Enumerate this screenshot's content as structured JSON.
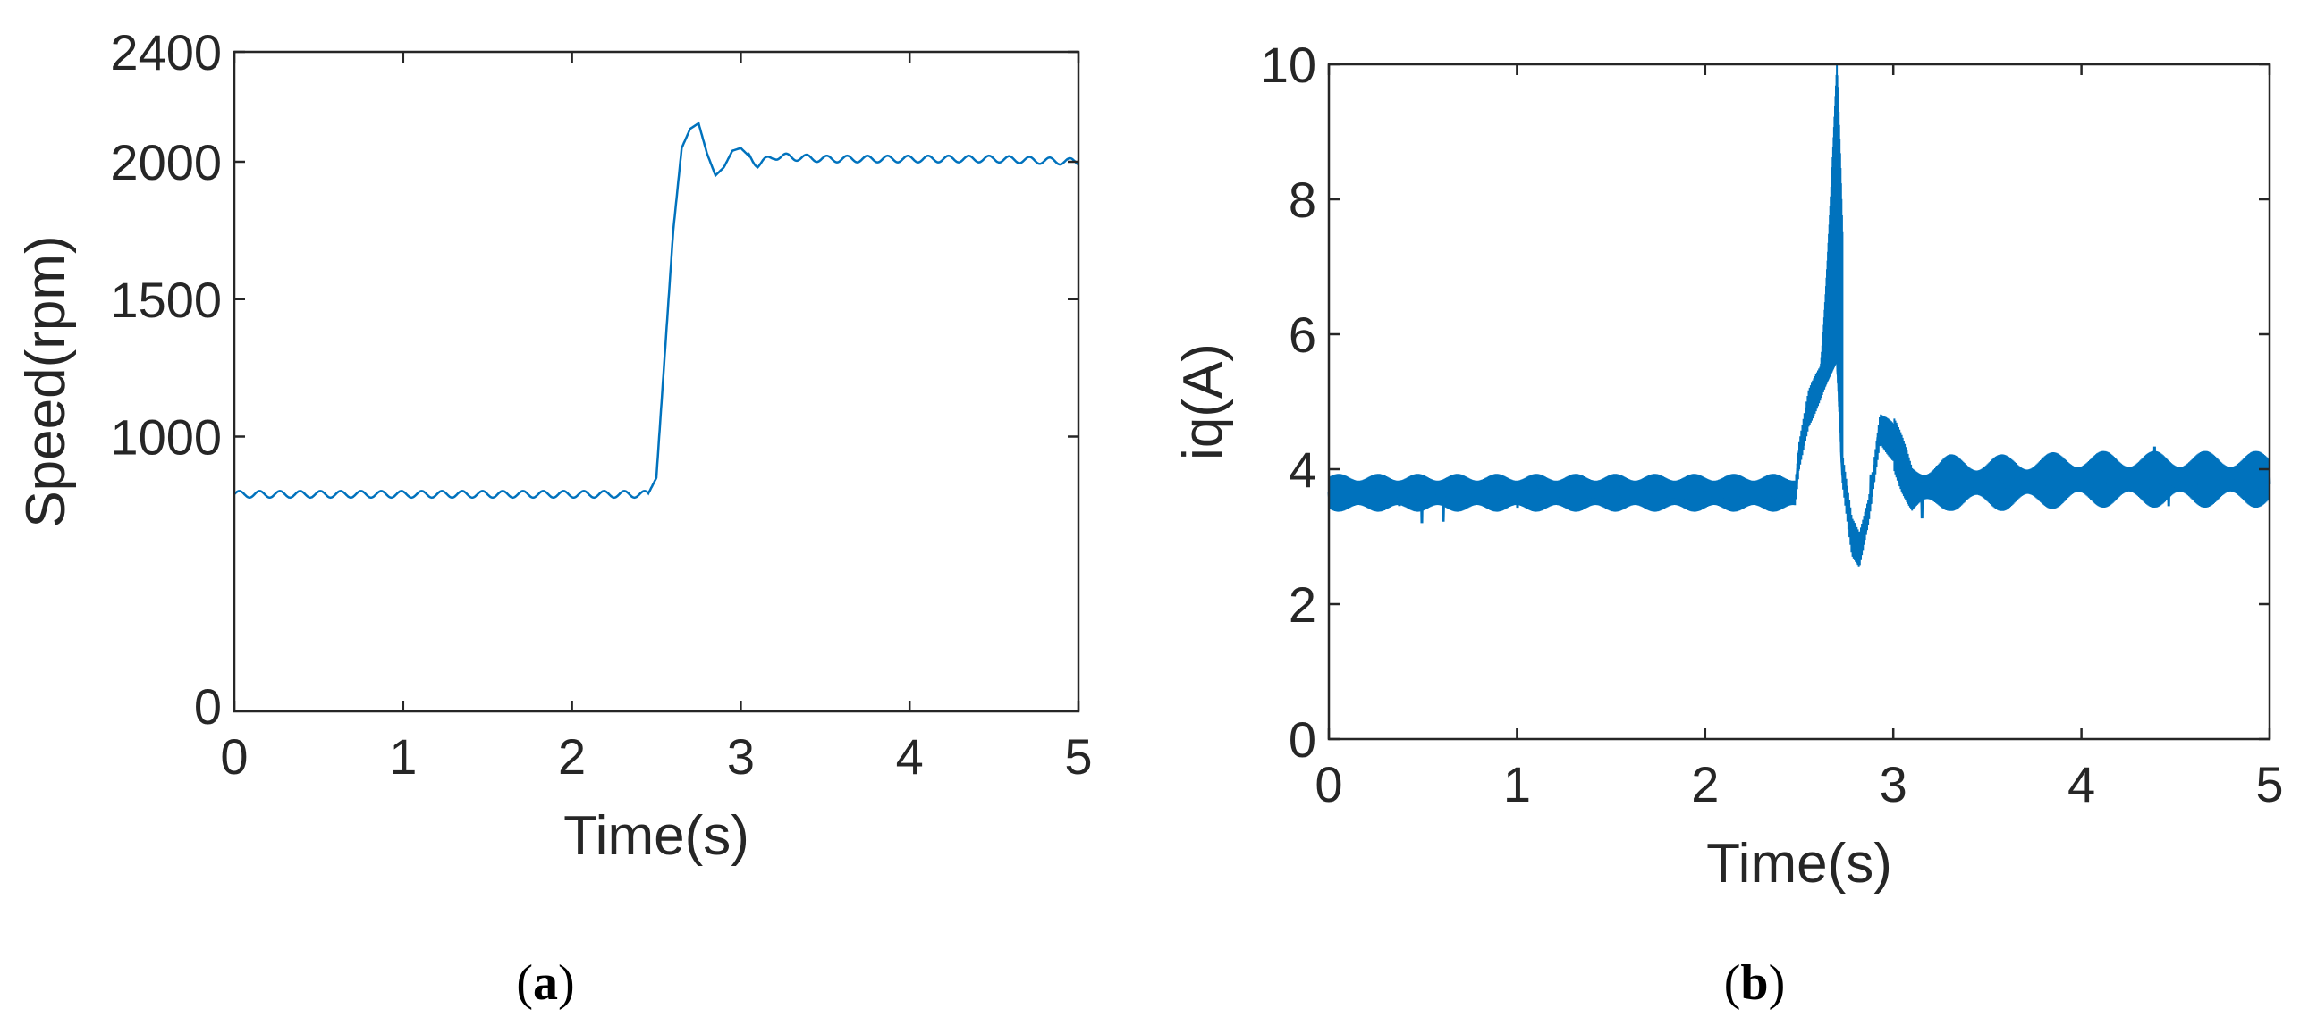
{
  "chart_data": [
    {
      "type": "line",
      "caption": {
        "open": "(",
        "letter": "a",
        "close": ")"
      },
      "xlabel": "Time(s)",
      "ylabel": "Speed(rpm)",
      "xlim": [
        0,
        5
      ],
      "ylim": [
        0,
        2400
      ],
      "xticks": [
        0,
        1,
        2,
        3,
        4,
        5
      ],
      "yticks": [
        1000,
        1500,
        2000,
        2400
      ],
      "ytick_extra": "0",
      "grid": false,
      "color": "#0072BD",
      "series": [
        {
          "x": [
            0,
            0.5,
            1.0,
            1.5,
            2.0,
            2.45,
            2.5,
            2.55,
            2.6,
            2.65,
            2.7,
            2.75,
            2.8,
            2.85,
            2.9,
            2.95,
            3.0,
            3.1,
            3.2,
            3.5,
            4.0,
            4.5,
            5.0
          ],
          "y": [
            790,
            790,
            790,
            790,
            790,
            790,
            850,
            1300,
            1750,
            2050,
            2120,
            2140,
            2030,
            1950,
            1980,
            2040,
            2050,
            1990,
            2020,
            2010,
            2010,
            2010,
            2000
          ]
        }
      ],
      "ripple": {
        "amplitude": 12,
        "period_s": 0.12,
        "segments": [
          [
            0,
            2.45
          ],
          [
            3.05,
            5.0
          ]
        ]
      }
    },
    {
      "type": "line",
      "caption": {
        "open": "(",
        "letter": "b",
        "close": ")"
      },
      "xlabel": "Time(s)",
      "ylabel": "iq(A)",
      "xlim": [
        0,
        5
      ],
      "ylim": [
        0,
        10
      ],
      "xticks": [
        0,
        1,
        2,
        3,
        4,
        5
      ],
      "yticks": [
        0,
        2,
        4,
        6,
        8,
        10
      ],
      "grid": false,
      "color": "#0072BD",
      "series": [
        {
          "x": [
            0,
            0.5,
            1.0,
            1.5,
            2.0,
            2.48,
            2.5,
            2.55,
            2.6,
            2.65,
            2.7,
            2.73,
            2.78,
            2.82,
            2.87,
            2.93,
            3.0,
            3.1,
            3.3,
            3.6,
            4.0,
            4.5,
            5.0
          ],
          "y": [
            3.65,
            3.65,
            3.65,
            3.65,
            3.65,
            3.65,
            4.2,
            4.9,
            5.2,
            5.5,
            5.8,
            4.0,
            3.0,
            2.8,
            3.4,
            4.6,
            4.4,
            3.7,
            3.8,
            3.8,
            3.85,
            3.85,
            3.85
          ]
        }
      ],
      "noise": {
        "band_amplitude": 0.18,
        "spike_amplitude": 0.45
      },
      "peak": {
        "x": 2.7,
        "ymax": 10,
        "ymin": 4.4
      }
    }
  ]
}
